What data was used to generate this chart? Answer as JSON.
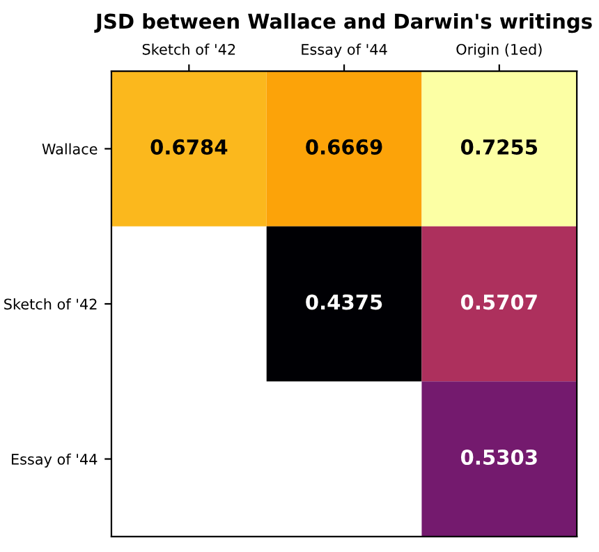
{
  "chart_data": {
    "type": "heatmap",
    "title": "JSD between Wallace and Darwin's writings",
    "categories": [
      "Sketch of '42",
      "Essay of '44",
      "Origin (1ed)"
    ],
    "y_categories": [
      "Wallace",
      "Sketch of '42",
      "Essay of '44"
    ],
    "cells": [
      [
        0.6784,
        0.6669,
        0.7255
      ],
      [
        null,
        0.4375,
        0.5707
      ],
      [
        null,
        null,
        0.5303
      ]
    ],
    "data_labels": true
  }
}
